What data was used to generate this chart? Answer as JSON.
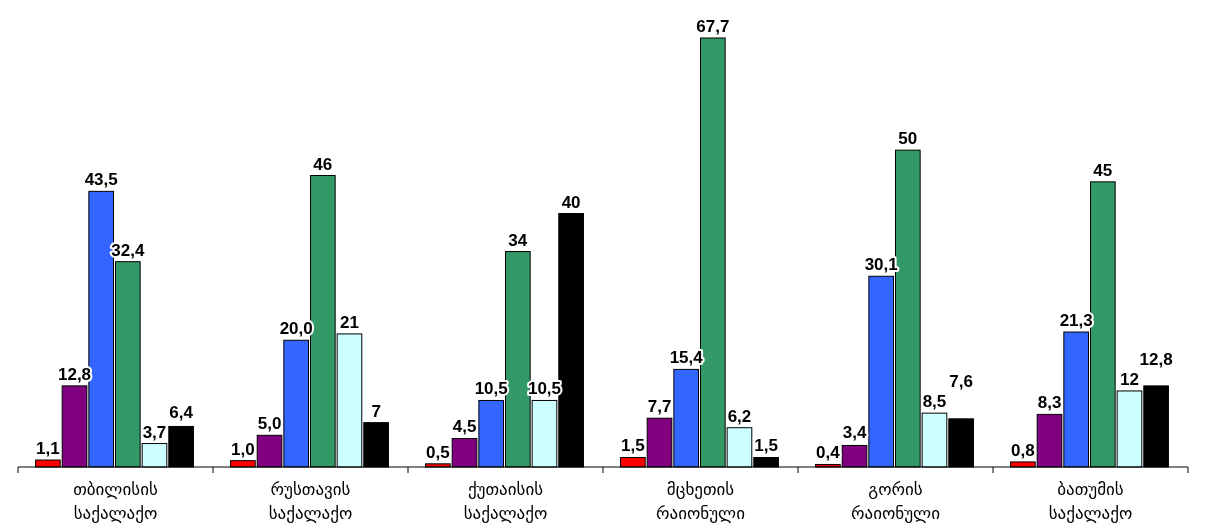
{
  "chart_data": {
    "type": "bar",
    "categories": [
      "თბილისის საქალაქო",
      "რუსთავის საქალაქო",
      "ქუთაისის საქალაქო",
      "მცხეთის რაიონული",
      "გორის რაიონული",
      "ბათუმის საქალაქო"
    ],
    "series": [
      {
        "color": "#ff0000",
        "values": [
          1.1,
          1.0,
          0.5,
          1.5,
          0.4,
          0.8
        ],
        "value_labels": [
          "1,1",
          "1,0",
          "0,5",
          "1,5",
          "0,4",
          "0,8"
        ]
      },
      {
        "color": "#800080",
        "values": [
          12.8,
          5.0,
          4.5,
          7.7,
          3.4,
          8.3
        ],
        "value_labels": [
          "12,8",
          "5,0",
          "4,5",
          "7,7",
          "3,4",
          "8,3"
        ]
      },
      {
        "color": "#3366ff",
        "values": [
          43.5,
          20.0,
          10.5,
          15.4,
          30.1,
          21.3
        ],
        "value_labels": [
          "43,5",
          "20,0",
          "10,5",
          "15,4",
          "30,1",
          "21,3"
        ]
      },
      {
        "color": "#339966",
        "values": [
          32.4,
          46,
          34,
          67.7,
          50,
          45
        ],
        "value_labels": [
          "32,4",
          "46",
          "34",
          "67,7",
          "50",
          "45"
        ]
      },
      {
        "color": "#ccffff",
        "values": [
          3.7,
          21,
          10.5,
          6.2,
          8.5,
          12
        ],
        "value_labels": [
          "3,7",
          "21",
          "10,5",
          "6,2",
          "8,5",
          "12"
        ]
      },
      {
        "color": "#000000",
        "values": [
          6.4,
          7,
          40,
          1.5,
          7.6,
          12.8
        ],
        "value_labels": [
          "6,4",
          "7",
          "40",
          "1,5",
          "7,6",
          "12,8"
        ]
      }
    ]
  }
}
